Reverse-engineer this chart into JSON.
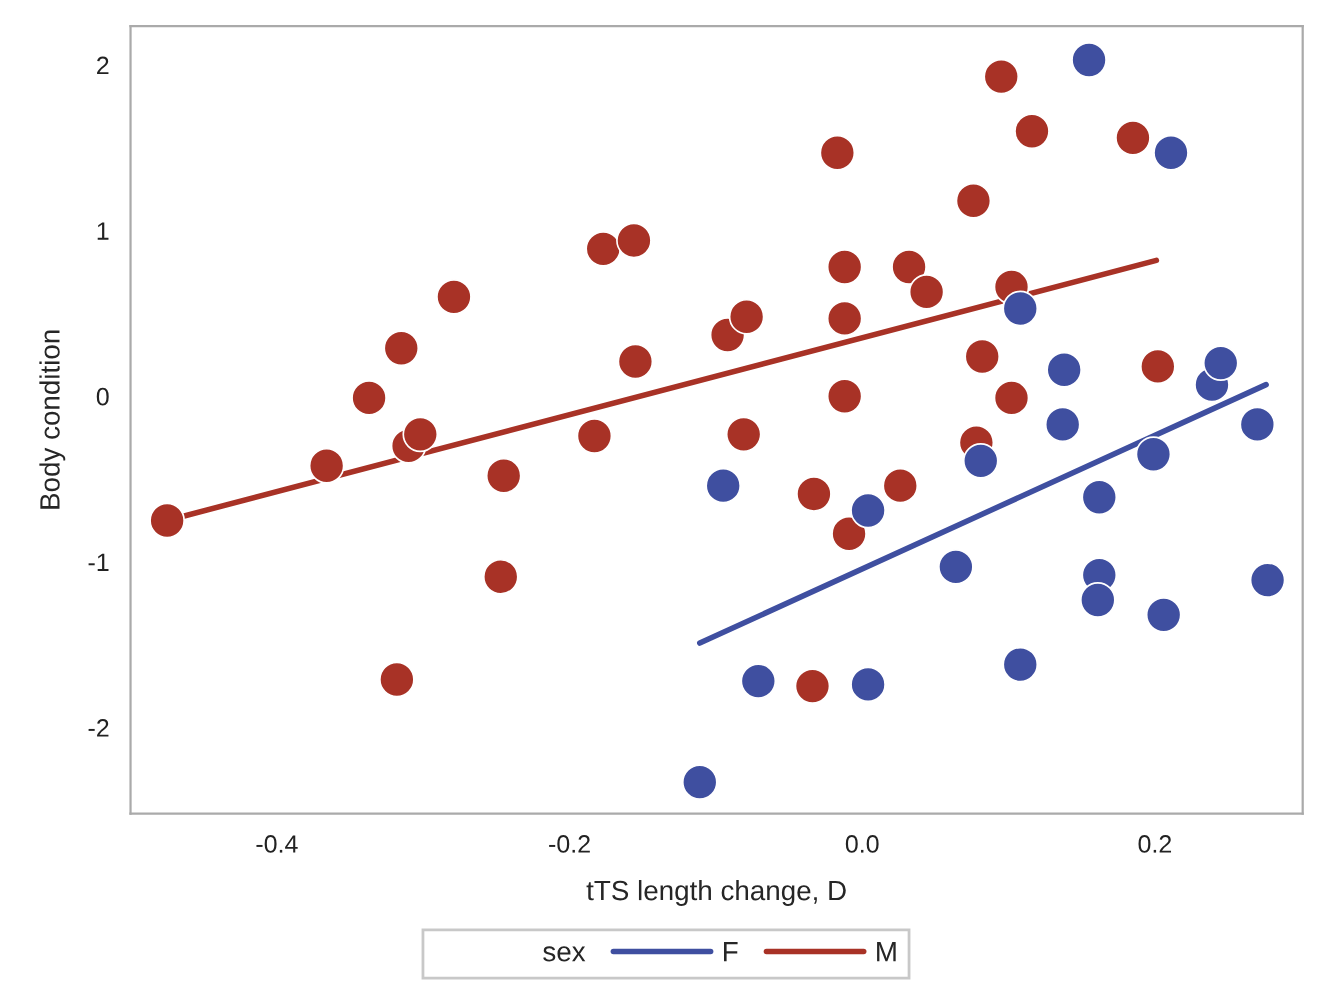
{
  "chart_data": {
    "type": "scatter",
    "xlabel": "tTS length change, D",
    "ylabel": "Body condition",
    "legend_title": "sex",
    "legend": "bottom",
    "grid": false,
    "xlim": [
      -0.5,
      0.301
    ],
    "ylim": [
      -2.52,
      2.235
    ],
    "xticks": [
      -0.4,
      -0.2,
      {
        "value": 0,
        "label": "0.0"
      },
      0.2
    ],
    "yticks": [
      -2,
      -1,
      0,
      1,
      2
    ],
    "series": [
      {
        "marker": "circle",
        "color": "#a83226",
        "x": [
          -0.475,
          -0.366,
          -0.337,
          -0.315,
          -0.31,
          -0.302,
          -0.279,
          -0.245,
          -0.247,
          -0.318,
          -0.183,
          -0.177,
          -0.156,
          -0.155,
          -0.092,
          -0.079,
          -0.081,
          -0.033,
          -0.017,
          -0.012,
          -0.012,
          -0.012,
          -0.009,
          -0.034,
          0.026,
          0.032,
          0.044,
          0.076,
          0.082,
          0.078,
          0.095,
          0.102,
          0.102,
          0.116,
          0.185,
          0.202
        ],
        "values": [
          -0.75,
          -0.42,
          -0.01,
          0.29,
          -0.3,
          -0.23,
          0.6,
          -0.48,
          -1.09,
          -1.71,
          -0.24,
          0.89,
          0.94,
          0.21,
          0.37,
          0.48,
          -0.23,
          -0.59,
          1.47,
          0.78,
          0.47,
          0.0,
          -0.83,
          -1.75,
          -0.54,
          0.78,
          0.63,
          1.18,
          0.24,
          -0.28,
          1.93,
          0.66,
          -0.01,
          1.6,
          1.56,
          0.18
        ]
      },
      {
        "marker": "circle",
        "color": "#3f4fa0",
        "x": [
          -0.095,
          -0.071,
          -0.111,
          0.004,
          0.004,
          0.064,
          0.081,
          0.108,
          0.108,
          0.138,
          0.137,
          0.155,
          0.162,
          0.162,
          0.161,
          0.199,
          0.206,
          0.211,
          0.239,
          0.245,
          0.27,
          0.277
        ],
        "values": [
          -0.54,
          -1.72,
          -2.33,
          -0.69,
          -1.74,
          -1.03,
          -0.39,
          0.53,
          -1.62,
          0.16,
          -0.17,
          2.03,
          -0.61,
          -1.08,
          -1.23,
          -0.35,
          -1.32,
          1.47,
          0.07,
          0.2,
          -0.17,
          -1.11
        ]
      },
      {
        "type": "line",
        "name": "F",
        "color": "#3f4fa0",
        "x": [
          -0.111,
          0.276
        ],
        "values": [
          -1.49,
          0.07
        ]
      },
      {
        "type": "line",
        "name": "M",
        "color": "#a83226",
        "x": [
          -0.475,
          0.201
        ],
        "values": [
          -0.75,
          0.82
        ]
      }
    ]
  }
}
